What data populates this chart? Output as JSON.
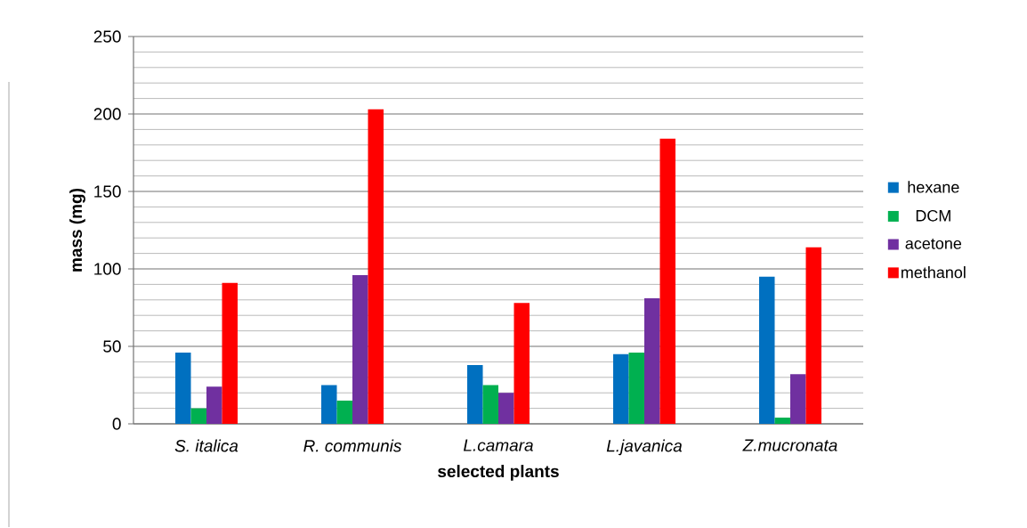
{
  "chart_data": {
    "type": "bar",
    "xlabel": "selected plants",
    "ylabel": "mass (mg)",
    "categories": [
      "S. italica",
      "R. communis",
      "L.camara",
      "L.javanica",
      "Z.mucronata"
    ],
    "series": [
      {
        "name": "hexane",
        "color": "#0070c0",
        "values": [
          46,
          25,
          38,
          45,
          95
        ]
      },
      {
        "name": "DCM",
        "color": "#00b050",
        "values": [
          10,
          15,
          25,
          46,
          4
        ]
      },
      {
        "name": "acetone",
        "color": "#7030a0",
        "values": [
          24,
          96,
          20,
          81,
          32
        ]
      },
      {
        "name": "methanol",
        "color": "#ff0000",
        "values": [
          91,
          203,
          78,
          184,
          114
        ]
      }
    ],
    "ylim": [
      0,
      250
    ],
    "yticks": [
      0,
      {
        "value": 10,
        "label": null
      },
      {
        "value": 20,
        "label": null
      },
      {
        "value": 30,
        "label": null
      },
      {
        "value": 40,
        "label": null
      },
      50,
      {
        "value": 60,
        "label": null
      },
      {
        "value": 70,
        "label": null
      },
      {
        "value": 80,
        "label": null
      },
      {
        "value": 90,
        "label": null
      },
      100,
      {
        "value": 110,
        "label": null
      },
      {
        "value": 120,
        "label": null
      },
      {
        "value": 130,
        "label": null
      },
      {
        "value": 140,
        "label": null
      },
      150,
      {
        "value": 160,
        "label": null
      },
      {
        "value": 170,
        "label": null
      },
      {
        "value": 180,
        "label": null
      },
      {
        "value": 190,
        "label": null
      },
      200,
      {
        "value": 210,
        "label": null
      },
      {
        "value": 220,
        "label": null
      },
      {
        "value": 230,
        "label": null
      },
      {
        "value": 240,
        "label": null
      },
      250
    ],
    "grid": true,
    "legend": "right"
  }
}
